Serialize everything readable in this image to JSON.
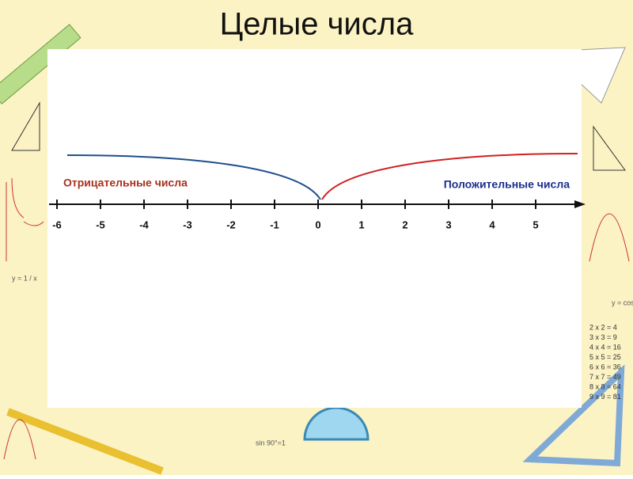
{
  "header": {
    "title": "Целые числа"
  },
  "number_line": {
    "negative_label": "Отрицательные числа",
    "positive_label": "Положительные числа",
    "ticks": [
      -6,
      -5,
      -4,
      -3,
      -2,
      -1,
      0,
      1,
      2,
      3,
      4,
      5
    ]
  },
  "decorations": {
    "left_formula": "y = 1 / x",
    "right_formula": "y = cos",
    "bottom_formula": "sin 90°=1",
    "multiplication": [
      "2 x 2 = 4",
      "3 x 3 = 9",
      "4 x 4 = 16",
      "5 x 5 = 25",
      "6 x 6 = 36",
      "7 x 7 = 49",
      "8 x 8 = 64",
      "9 x 9 = 81"
    ]
  }
}
